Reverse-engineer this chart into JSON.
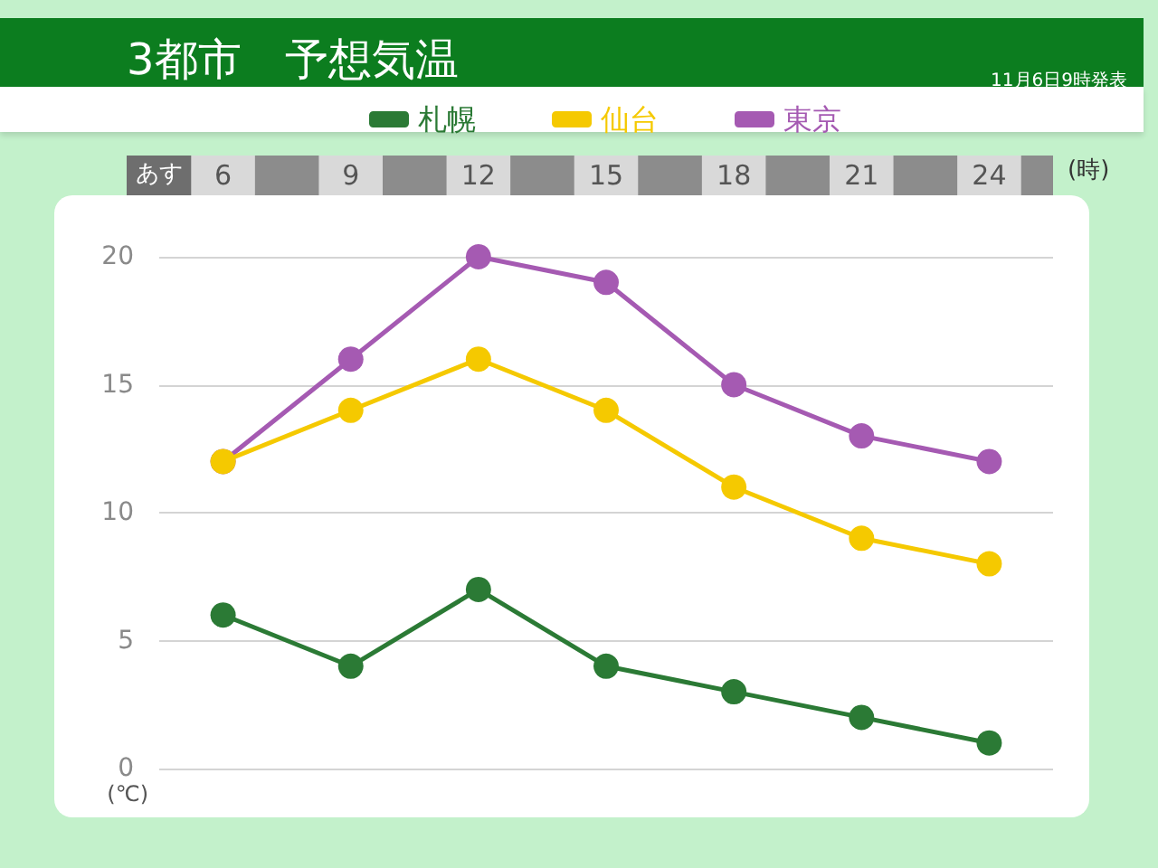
{
  "chart_data": {
    "type": "line",
    "title": "3都市　予想気温",
    "subtitle": "11月6日9時発表",
    "xlabel": "(時)",
    "ylabel": "(℃)",
    "annotations": [
      "あす"
    ],
    "categories": [
      "6",
      "9",
      "12",
      "15",
      "18",
      "21",
      "24"
    ],
    "series": [
      {
        "name": "札幌",
        "color": "#2b7a35",
        "values": [
          6,
          4,
          7,
          4,
          3,
          2,
          1
        ]
      },
      {
        "name": "仙台",
        "color": "#f5c900",
        "values": [
          12,
          14,
          16,
          14,
          11,
          9,
          8
        ]
      },
      {
        "name": "東京",
        "color": "#a55ab2",
        "values": [
          12,
          16,
          20,
          19,
          15,
          13,
          12
        ]
      }
    ],
    "ylim": [
      0,
      20
    ],
    "yticks": [
      0,
      5,
      10,
      15,
      20
    ],
    "grid": "y",
    "legend": "top right",
    "marker": "circle",
    "line_style": "solid"
  }
}
